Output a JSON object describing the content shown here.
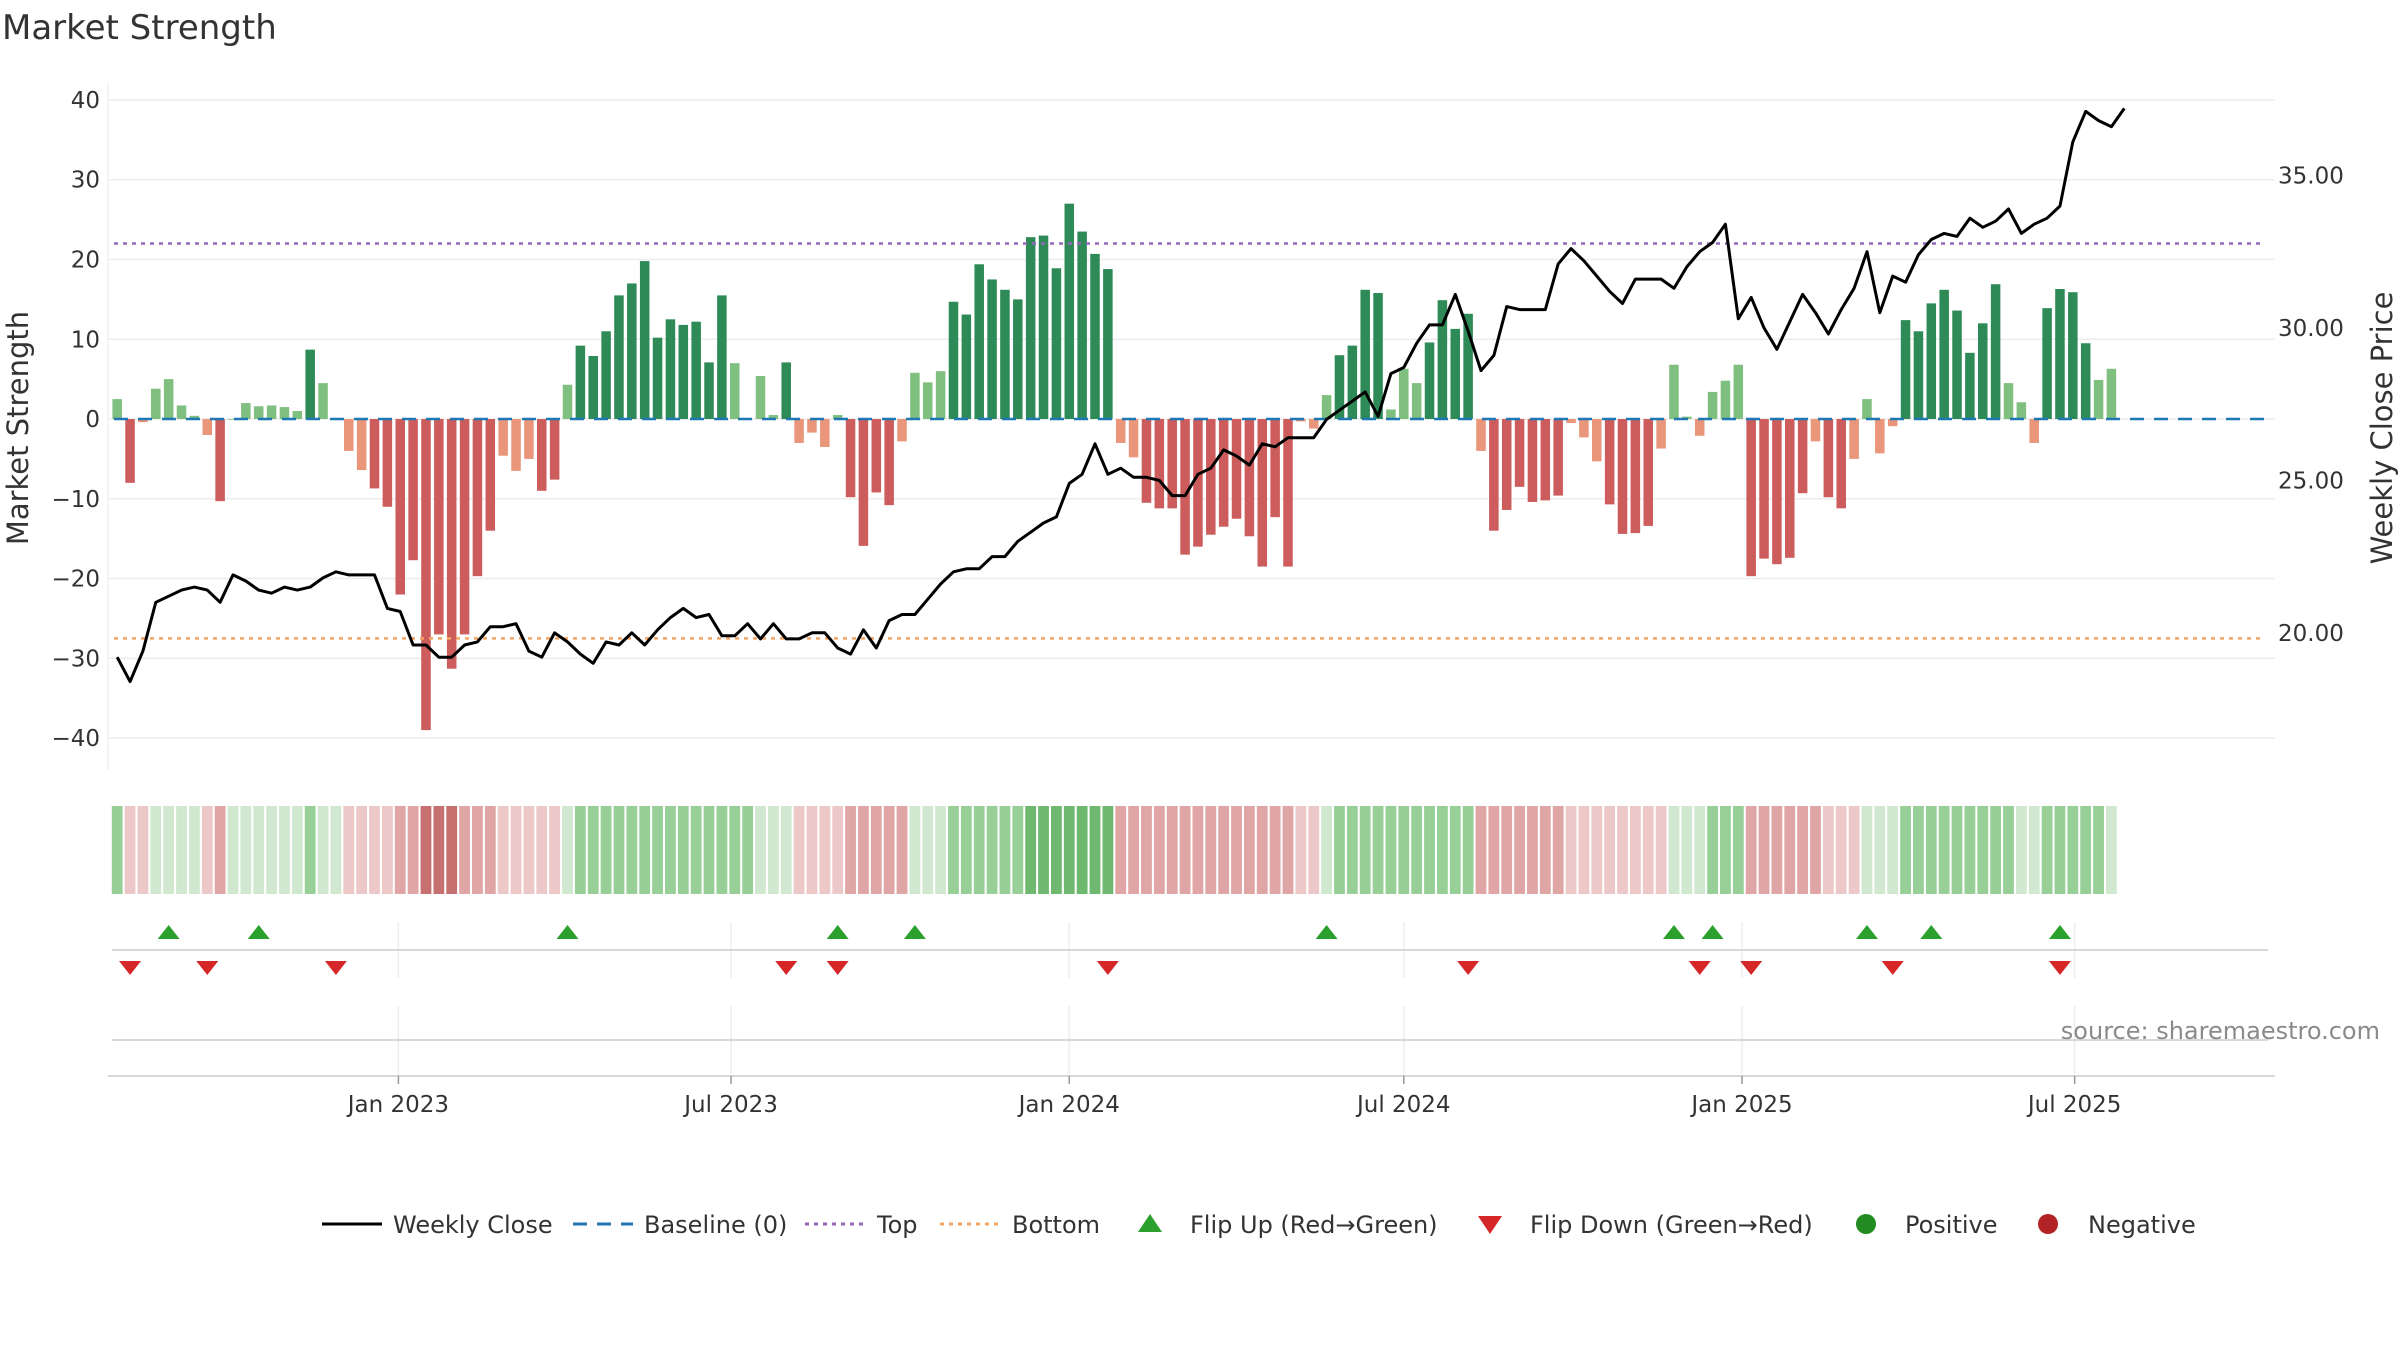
{
  "chart_data": {
    "type": "bar",
    "title": "Market Strength",
    "ylabel": "Market Strength",
    "y2label": "Weekly Close Price",
    "ylim": [
      -44,
      42
    ],
    "y2lim": [
      15.5,
      38.0
    ],
    "yticks": [
      "40",
      "30",
      "20",
      "10",
      "0",
      "−10",
      "−20",
      "−30",
      "−40"
    ],
    "y2ticks": [
      "35.00",
      "30.00",
      "25.00",
      "20.00"
    ],
    "xlim": [
      "2022-07-27",
      "2025-10-18"
    ],
    "x_start": "2022-08-01",
    "x_step_days": 7,
    "xticks": [
      {
        "date": "2023-01-01",
        "label": "Jan 2023"
      },
      {
        "date": "2023-07-01",
        "label": "Jul 2023"
      },
      {
        "date": "2024-01-01",
        "label": "Jan 2024"
      },
      {
        "date": "2024-07-01",
        "label": "Jul 2024"
      },
      {
        "date": "2025-01-01",
        "label": "Jan 2025"
      },
      {
        "date": "2025-07-01",
        "label": "Jul 2025"
      }
    ],
    "reference_lines": [
      {
        "name": "Baseline (0)",
        "value": 0,
        "style": "dash",
        "color": "#1f77b4"
      },
      {
        "name": "Top",
        "value": 22,
        "style": "dot",
        "color": "#9467bd"
      },
      {
        "name": "Bottom",
        "value": -27.5,
        "style": "dot",
        "color": "#f4a460"
      }
    ],
    "strength": [
      2.5,
      -8,
      -0.4,
      3.8,
      5,
      1.7,
      0.4,
      -2,
      -10.3,
      0,
      2,
      1.6,
      1.7,
      1.5,
      1,
      8.7,
      4.5,
      0,
      -4,
      -6.4,
      -8.7,
      -11,
      -22,
      -17.7,
      -39,
      -27,
      -31.3,
      -27,
      -19.7,
      -14,
      -4.6,
      -6.5,
      -5,
      -9,
      -7.6,
      4.3,
      9.2,
      7.9,
      11,
      15.5,
      17,
      19.8,
      10.2,
      12.5,
      11.8,
      12.2,
      7.1,
      15.5,
      7,
      0,
      5.4,
      0.5,
      7.1,
      -3,
      -1.7,
      -3.5,
      0.5,
      -9.8,
      -15.9,
      -9.2,
      -10.8,
      -2.8,
      5.8,
      4.6,
      6,
      14.7,
      13.1,
      19.4,
      17.5,
      16.2,
      15,
      22.8,
      23,
      18.9,
      27,
      23.5,
      20.7,
      18.8,
      -3,
      -4.8,
      -10.5,
      -11.2,
      -11.2,
      -17,
      -16,
      -14.5,
      -13.5,
      -12.5,
      -14.7,
      -18.5,
      -12.3,
      -18.5,
      -0.3,
      -1.2,
      3,
      8,
      9.2,
      16.2,
      15.8,
      1.2,
      6.3,
      4.5,
      9.6,
      14.9,
      11.3,
      13.2,
      -4,
      -14,
      -11.4,
      -8.5,
      -10.4,
      -10.2,
      -9.6,
      -0.5,
      -2.3,
      -5.3,
      -10.7,
      -14.4,
      -14.3,
      -13.4,
      -3.7,
      6.8,
      0.3,
      -2.1,
      3.4,
      4.8,
      6.8,
      -19.7,
      -17.5,
      -18.2,
      -17.4,
      -9.3,
      -2.8,
      -9.8,
      -11.2,
      -5,
      2.5,
      -4.3,
      -0.9,
      12.4,
      11,
      14.5,
      16.2,
      13.6,
      8.3,
      12,
      16.9,
      4.5,
      2.1,
      -3,
      13.9,
      16.3,
      15.9,
      9.5,
      4.9,
      6.3
    ],
    "close": [
      19.2,
      18.4,
      19.4,
      21,
      21.2,
      21.4,
      21.5,
      21.4,
      21,
      21.9,
      21.7,
      21.4,
      21.3,
      21.5,
      21.4,
      21.5,
      21.8,
      22,
      21.9,
      21.9,
      21.9,
      20.8,
      20.7,
      19.6,
      19.6,
      19.2,
      19.2,
      19.6,
      19.7,
      20.2,
      20.2,
      20.3,
      19.4,
      19.2,
      20,
      19.7,
      19.3,
      19,
      19.7,
      19.6,
      20,
      19.6,
      20.1,
      20.5,
      20.8,
      20.5,
      20.6,
      19.9,
      19.9,
      20.3,
      19.8,
      20.3,
      19.8,
      19.8,
      20,
      20,
      19.5,
      19.3,
      20.1,
      19.5,
      20.4,
      20.6,
      20.6,
      21.1,
      21.6,
      22,
      22.1,
      22.1,
      22.5,
      22.5,
      23,
      23.3,
      23.6,
      23.8,
      24.9,
      25.2,
      26.2,
      25.2,
      25.4,
      25.1,
      25.1,
      25,
      24.5,
      24.5,
      25.2,
      25.4,
      26,
      25.8,
      25.5,
      26.2,
      26.1,
      26.4,
      26.4,
      26.4,
      27,
      27.3,
      27.6,
      27.9,
      27.1,
      28.5,
      28.7,
      29.5,
      30.1,
      30.1,
      31.1,
      29.9,
      28.6,
      29.1,
      30.7,
      30.6,
      30.6,
      30.6,
      32.1,
      32.6,
      32.2,
      31.7,
      31.2,
      30.8,
      31.6,
      31.6,
      31.6,
      31.3,
      32,
      32.5,
      32.8,
      33.4,
      30.3,
      31,
      30,
      29.3,
      30.2,
      31.1,
      30.5,
      29.8,
      30.6,
      31.3,
      32.5,
      30.5,
      31.7,
      31.5,
      32.4,
      32.9,
      33.1,
      33,
      33.6,
      33.3,
      33.5,
      33.9,
      33.1,
      33.4,
      33.6,
      34,
      36.1,
      37.1,
      36.8,
      36.6,
      37.2
    ],
    "regime_strip": [
      2,
      -1,
      -1,
      1,
      1,
      1,
      1,
      -1,
      -2,
      1,
      1,
      1,
      1,
      1,
      1,
      2,
      1,
      1,
      -1,
      -1,
      -1,
      -1,
      -2,
      -2,
      -3,
      -3,
      -3,
      -2,
      -2,
      -2,
      -1,
      -1,
      -1,
      -1,
      -1,
      1,
      2,
      2,
      2,
      2,
      2,
      2,
      2,
      2,
      2,
      2,
      2,
      2,
      2,
      2,
      1,
      1,
      1,
      -1,
      -1,
      -1,
      -1,
      -2,
      -2,
      -2,
      -2,
      -2,
      1,
      1,
      1,
      2,
      2,
      2,
      2,
      2,
      2,
      3,
      3,
      3,
      3,
      3,
      3,
      3,
      -2,
      -2,
      -2,
      -2,
      -2,
      -2,
      -2,
      -2,
      -2,
      -2,
      -2,
      -2,
      -2,
      -2,
      -1,
      -1,
      1,
      2,
      2,
      2,
      2,
      2,
      2,
      2,
      2,
      2,
      2,
      2,
      -2,
      -2,
      -2,
      -2,
      -2,
      -2,
      -2,
      -1,
      -1,
      -1,
      -1,
      -1,
      -1,
      -1,
      -1,
      1,
      1,
      1,
      2,
      2,
      2,
      -2,
      -2,
      -2,
      -2,
      -2,
      -2,
      -1,
      -1,
      -1,
      1,
      1,
      1,
      2,
      2,
      2,
      2,
      2,
      2,
      2,
      2,
      2,
      1,
      1,
      2,
      2,
      2,
      2,
      2,
      1
    ],
    "flip_up": [
      4,
      11,
      35,
      56,
      62,
      94,
      121,
      124,
      136,
      141,
      151
    ],
    "flip_down": [
      1,
      7,
      17,
      52,
      56,
      77,
      105,
      123,
      127,
      138,
      151
    ],
    "legend": [
      "Weekly Close",
      "Baseline (0)",
      "Top",
      "Bottom",
      "Flip Up (Red→Green)",
      "Flip Down (Green→Red)",
      "Positive",
      "Negative"
    ],
    "legend_placement": "bottom-center",
    "colors": {
      "strong_green": "#2e8b57",
      "light_green": "#7fbf7f",
      "strong_red": "#cd5c5c",
      "light_red": "#e9967a",
      "flip_up": "#2ca02c",
      "flip_down": "#d62728",
      "positive": "#228b22",
      "negative": "#b22222",
      "close_line": "#000000"
    },
    "source": "source: sharemaestro.com",
    "grid": true
  }
}
